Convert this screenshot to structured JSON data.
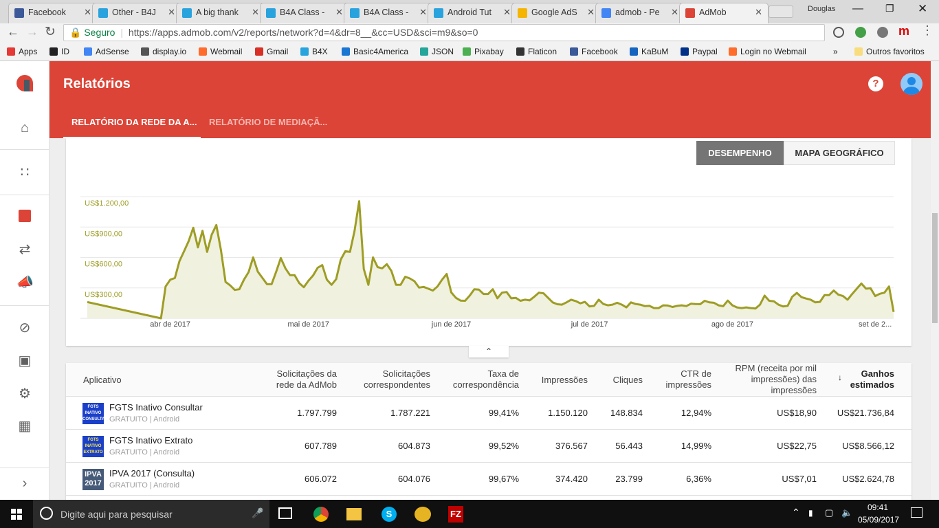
{
  "browser": {
    "tabs": [
      {
        "label": "Facebook",
        "icon": "facebook-icon",
        "color": "#3b5998"
      },
      {
        "label": "Other - B4J",
        "icon": "b4x-icon",
        "color": "#29a3dd"
      },
      {
        "label": "A big thank",
        "icon": "b4x-icon",
        "color": "#29a3dd"
      },
      {
        "label": "B4A Class -",
        "icon": "b4x-icon",
        "color": "#29a3dd"
      },
      {
        "label": "B4A Class -",
        "icon": "b4x-icon",
        "color": "#29a3dd"
      },
      {
        "label": "Android Tut",
        "icon": "b4x-icon",
        "color": "#29a3dd"
      },
      {
        "label": "Google AdS",
        "icon": "adsense-icon",
        "color": "#f4b400"
      },
      {
        "label": "admob - Pe",
        "icon": "google-icon",
        "color": "#4285f4"
      },
      {
        "label": "AdMob",
        "icon": "admob-icon",
        "color": "#db4437"
      }
    ],
    "user": "Douglas",
    "secure_label": "Seguro",
    "url": "https://apps.admob.com/v2/reports/network?d=4&dr=8__&cc=USD&sci=m9&so=0",
    "bookmarks": [
      {
        "label": "Apps",
        "color": "#e53935"
      },
      {
        "label": "ID",
        "color": "#222"
      },
      {
        "label": "AdSense",
        "color": "#4285f4"
      },
      {
        "label": "display.io",
        "color": "#555"
      },
      {
        "label": "Webmail",
        "color": "#ff6c2c"
      },
      {
        "label": "Gmail",
        "color": "#d93025"
      },
      {
        "label": "B4X",
        "color": "#29a3dd"
      },
      {
        "label": "Basic4America",
        "color": "#1976d2"
      },
      {
        "label": "JSON",
        "color": "#26a69a"
      },
      {
        "label": "Pixabay",
        "color": "#4caf50"
      },
      {
        "label": "Flaticon",
        "color": "#333"
      },
      {
        "label": "Facebook",
        "color": "#3b5998"
      },
      {
        "label": "KaBuM",
        "color": "#1565c0"
      },
      {
        "label": "Paypal",
        "color": "#003087"
      },
      {
        "label": "Login no Webmail",
        "color": "#ff6c2c"
      }
    ],
    "more": "»",
    "other_bookmarks": "Outros favoritos"
  },
  "app": {
    "title": "Relatórios",
    "tabs": [
      {
        "label": "RELATÓRIO DA REDE DA A..."
      },
      {
        "label": "RELATÓRIO DE MEDIAÇÃ..."
      }
    ],
    "accent": "#db4437",
    "view_toggle": [
      "DESEMPENHO",
      "MAPA GEOGRÁFICO"
    ],
    "sidebar": [
      "home-icon",
      "apps-icon",
      "reports-icon",
      "mediation-icon",
      "campaigns-icon",
      "block-icon",
      "payments-icon",
      "settings-icon",
      "feedback-icon",
      "expand-icon"
    ]
  },
  "chart_data": {
    "type": "area",
    "line_color": "#9e9d24",
    "fill_color": "#f0f1df",
    "ylim": [
      0,
      1200
    ],
    "y_ticks": [
      {
        "v": 300,
        "label": "US$300,00"
      },
      {
        "v": 600,
        "label": "US$600,00"
      },
      {
        "v": 900,
        "label": "US$900,00"
      },
      {
        "v": 1200,
        "label": "US$1.200,00"
      }
    ],
    "x_ticks": [
      {
        "date": "2017-04-01",
        "label": "abr de 2017"
      },
      {
        "date": "2017-05-01",
        "label": "mai de 2017"
      },
      {
        "date": "2017-06-01",
        "label": "jun de 2017"
      },
      {
        "date": "2017-07-01",
        "label": "jul de 2017"
      },
      {
        "date": "2017-08-01",
        "label": "ago de 2017"
      },
      {
        "date": "2017-09-01",
        "label": "set de 2..."
      }
    ],
    "grid": true,
    "pre_points": [
      [
        "2017-03-14",
        161
      ],
      [
        "2017-03-30",
        0
      ],
      [
        "2017-03-31",
        314
      ]
    ],
    "daily_from": "2017-04-01",
    "values": [
      381,
      397,
      565,
      662,
      762,
      893,
      700,
      863,
      655,
      825,
      920,
      673,
      359,
      325,
      280,
      287,
      381,
      455,
      601,
      460,
      399,
      336,
      336,
      460,
      594,
      493,
      426,
      426,
      348,
      307,
      370,
      422,
      498,
      525,
      381,
      330,
      386,
      579,
      662,
      655,
      863,
      1155,
      487,
      330,
      601,
      505,
      493,
      534,
      467,
      330,
      330,
      410,
      393,
      366,
      303,
      310,
      292,
      274,
      314,
      381,
      437,
      255,
      202,
      175,
      173,
      224,
      287,
      283,
      240,
      240,
      287,
      197,
      253,
      260,
      197,
      202,
      173,
      184,
      177,
      213,
      253,
      247,
      202,
      157,
      139,
      135,
      157,
      184,
      170,
      148,
      162,
      117,
      123,
      184,
      141,
      128,
      135,
      153,
      135,
      108,
      157,
      141,
      135,
      121,
      123,
      101,
      101,
      128,
      126,
      112,
      123,
      128,
      121,
      144,
      141,
      139,
      173,
      157,
      153,
      128,
      119,
      175,
      128,
      108,
      101,
      108,
      101,
      96,
      135,
      224,
      173,
      168,
      135,
      117,
      123,
      213,
      251,
      209,
      195,
      184,
      157,
      162,
      229,
      229,
      274,
      233,
      220,
      184,
      240,
      292,
      343,
      292,
      296,
      220,
      242,
      253,
      314,
      63
    ]
  },
  "table": {
    "headers": [
      "Aplicativo",
      "Solicitações da rede da AdMob",
      "Solicitações correspondentes",
      "Taxa de correspondência",
      "Impressões",
      "Cliques",
      "CTR de impressões",
      "RPM (receita por mil impressões) das impressões",
      "Ganhos estimados"
    ],
    "sort_icon": "arrow-down-icon",
    "rows": [
      {
        "icon_text": "FGTS INATIVO CONSULTAR",
        "name": "FGTS Inativo Consultar",
        "meta": "GRATUITO | Android",
        "cells": [
          "1.797.799",
          "1.787.221",
          "99,41%",
          "1.150.120",
          "148.834",
          "12,94%",
          "US$18,90",
          "US$21.736,84"
        ]
      },
      {
        "icon_text": "FGTS INATIVO EXTRATO",
        "name": "FGTS Inativo Extrato",
        "meta": "GRATUITO | Android",
        "cells": [
          "607.789",
          "604.873",
          "99,52%",
          "376.567",
          "56.443",
          "14,99%",
          "US$22,75",
          "US$8.566,12"
        ]
      },
      {
        "icon_text": "IPVA 2017",
        "name": "IPVA 2017 (Consulta)",
        "meta": "GRATUITO | Android",
        "cells": [
          "606.072",
          "604.076",
          "99,67%",
          "374.420",
          "23.799",
          "6,36%",
          "US$7,01",
          "US$2.624,78"
        ]
      }
    ]
  },
  "taskbar": {
    "search_placeholder": "Digite aqui para pesquisar",
    "time": "09:41",
    "date": "05/09/2017"
  }
}
